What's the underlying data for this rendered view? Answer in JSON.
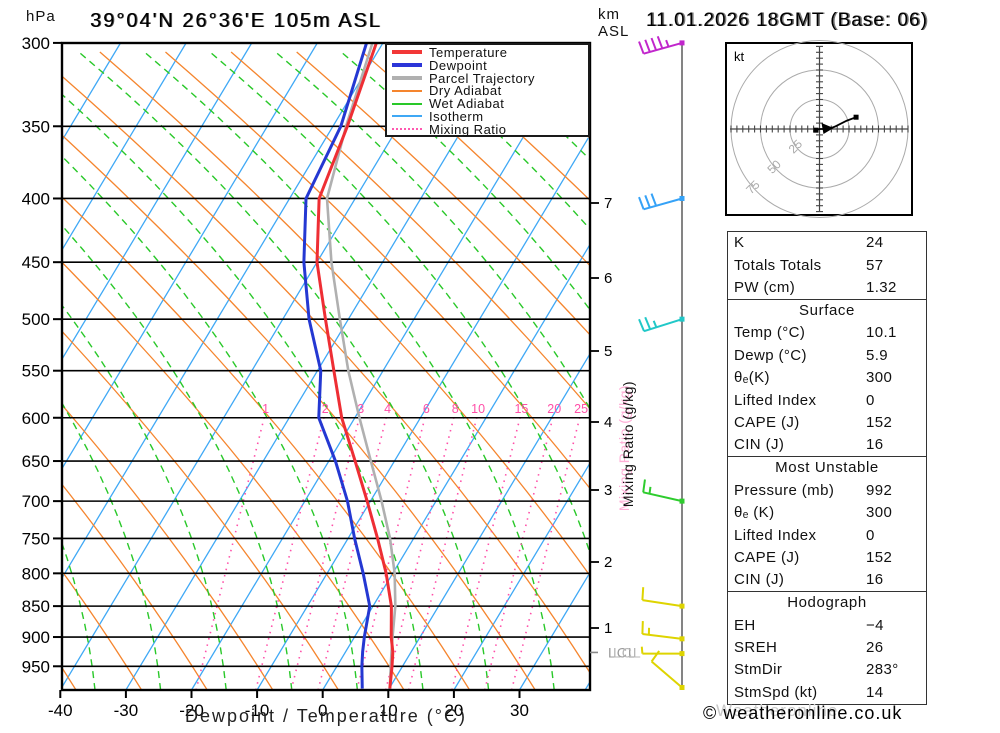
{
  "header": {
    "pressure_unit": "hPa",
    "title": "39°04'N 26°36'E 105m ASL",
    "datetime": "11.01.2026 18GMT (Base: 06)",
    "altitude_unit": "km\nASL"
  },
  "axes": {
    "x_label": "Dewpoint / Temperature (°C)",
    "x_ticks": [
      -40,
      -30,
      -20,
      -10,
      0,
      10,
      20,
      30
    ],
    "pressure_ticks": [
      300,
      350,
      400,
      450,
      500,
      550,
      600,
      650,
      700,
      750,
      800,
      850,
      900,
      950
    ],
    "km_ticks": [
      7,
      6,
      5,
      4,
      3,
      2,
      1
    ],
    "lcl_label": "LCL",
    "mixing_axis_label": "Mixing Ratio (g/kg)"
  },
  "legend": {
    "items": [
      {
        "label": "Temperature",
        "color": "#f23737",
        "style": "thick"
      },
      {
        "label": "Dewpoint",
        "color": "#2b35d8",
        "style": "thick"
      },
      {
        "label": "Parcel Trajectory",
        "color": "#b0b0b0",
        "style": "thick"
      },
      {
        "label": "Dry Adiabat",
        "color": "#f5852e",
        "style": "thin"
      },
      {
        "label": "Wet Adiabat",
        "color": "#29c829",
        "style": "thin"
      },
      {
        "label": "Isotherm",
        "color": "#3fa8f5",
        "style": "thin"
      },
      {
        "label": "Mixing Ratio",
        "color": "#ff58b0",
        "style": "dotted"
      }
    ]
  },
  "chart_data": {
    "type": "skewt-log-p sounding",
    "title": "39°04'N 26°36'E 105m ASL",
    "valid": "11.01.2026 18GMT (Base: 06)",
    "xlabel": "Dewpoint / Temperature (°C)",
    "xlim": [
      -40,
      40
    ],
    "pressure_lim_hpa": [
      300,
      993
    ],
    "colors": {
      "temperature": "#ee2e34",
      "dewpoint": "#2438d2",
      "parcel": "#b0b0b0",
      "dry_adiabat": "#f5852e",
      "wet_adiabat": "#29c829",
      "isotherm": "#3fa8f5",
      "mixing_ratio": "#ff4fa8"
    },
    "sounding": {
      "pressure_hpa": [
        990,
        950,
        925,
        900,
        850,
        800,
        750,
        700,
        650,
        600,
        550,
        500,
        450,
        400,
        350,
        300
      ],
      "temperature_c": [
        10.1,
        8.4,
        7.2,
        5.6,
        2.8,
        -1.0,
        -5.5,
        -10.5,
        -16.0,
        -22.0,
        -27.5,
        -33.5,
        -40.0,
        -45.5,
        -47.8,
        -51.0
      ],
      "dewpoint_c": [
        5.9,
        3.8,
        2.6,
        1.5,
        -0.5,
        -4.5,
        -9.0,
        -13.5,
        -19.0,
        -25.5,
        -29.5,
        -36.0,
        -42.0,
        -47.5,
        -48.8,
        -52.5
      ],
      "parcel_c": [
        10.1,
        8.2,
        7.0,
        5.8,
        3.4,
        0.3,
        -3.6,
        -8.3,
        -13.6,
        -19.3,
        -25.3,
        -31.3,
        -37.8,
        -44.3,
        -48.0,
        -51.6
      ]
    },
    "mixing_ratio_lines_g_kg": [
      1,
      2,
      3,
      4,
      6,
      8,
      10,
      15,
      20,
      25
    ],
    "lcl_pressure_hpa": 926,
    "wind_barbs": [
      {
        "pressure_hpa": 300,
        "speed_kt": 45,
        "color": "#c126cc",
        "dir": [
          -0.96,
          0.27
        ],
        "full": 4,
        "half": 1
      },
      {
        "pressure_hpa": 400,
        "speed_kt": 30,
        "color": "#35a2f7",
        "dir": [
          -0.96,
          0.27
        ],
        "full": 3,
        "half": 0
      },
      {
        "pressure_hpa": 500,
        "speed_kt": 25,
        "color": "#21c8c8",
        "dir": [
          -0.95,
          0.3
        ],
        "full": 2,
        "half": 1
      },
      {
        "pressure_hpa": 700,
        "speed_kt": 15,
        "color": "#2ecc2e",
        "dir": [
          -0.97,
          -0.22
        ],
        "full": 1,
        "half": 1
      },
      {
        "pressure_hpa": 850,
        "speed_kt": 10,
        "color": "#ded400",
        "dir": [
          -0.99,
          -0.15
        ],
        "full": 1,
        "half": 0
      },
      {
        "pressure_hpa": 903,
        "speed_kt": 15,
        "color": "#ded400",
        "dir": [
          -0.99,
          -0.12
        ],
        "full": 1,
        "half": 1
      },
      {
        "pressure_hpa": 928,
        "speed_kt": 5,
        "color": "#ded400",
        "dir": [
          -0.99,
          0.0
        ],
        "full": 0,
        "half": 1
      },
      {
        "pressure_hpa": 988,
        "speed_kt": 10,
        "color": "#ded400",
        "dir": [
          -0.76,
          -0.65
        ],
        "full": 1,
        "half": 0
      }
    ],
    "hodograph": {
      "unit_label": "kt",
      "ring_labels_kt": [
        25,
        50,
        75
      ],
      "trace_uv_kt": [
        [
          -3,
          -1
        ],
        [
          0,
          0
        ],
        [
          8,
          0
        ],
        [
          13,
          2
        ],
        [
          23,
          7
        ],
        [
          31,
          10
        ]
      ],
      "storm_motion": {
        "dir_deg": 283,
        "speed_kt": 14
      }
    },
    "indices": {
      "K": 24,
      "Totals_Totals": 57,
      "PW_cm": 1.32,
      "surface": {
        "temp_c": 10.1,
        "dewp_c": 5.9,
        "theta_e_k": 300,
        "lifted_index": 0,
        "cape_j": 152,
        "cin_j": 16
      },
      "most_unstable": {
        "pressure_mb": 992,
        "theta_e_k": 300,
        "lifted_index": 0,
        "cape_j": 152,
        "cin_j": 16
      },
      "hodograph": {
        "EH": -4,
        "SREH": 26,
        "StmDir_deg": 283,
        "StmSpd_kt": 14
      }
    }
  },
  "hodograph_panel": {
    "unit_label": "kt",
    "ring_labels": [
      "25",
      "50",
      "75"
    ]
  },
  "stats_tables": [
    {
      "header": null,
      "rows": [
        [
          "K",
          "24"
        ],
        [
          "Totals Totals",
          "57"
        ],
        [
          "PW (cm)",
          "1.32"
        ]
      ]
    },
    {
      "header": "Surface",
      "rows": [
        [
          "Temp (°C)",
          "10.1"
        ],
        [
          "Dewp (°C)",
          "5.9"
        ],
        [
          "θₑ(K)",
          "300"
        ],
        [
          "Lifted Index",
          "0"
        ],
        [
          "CAPE (J)",
          "152"
        ],
        [
          "CIN (J)",
          "16"
        ]
      ]
    },
    {
      "header": "Most Unstable",
      "rows": [
        [
          "Pressure (mb)",
          "992"
        ],
        [
          "θₑ (K)",
          "300"
        ],
        [
          "Lifted Index",
          "0"
        ],
        [
          "CAPE (J)",
          "152"
        ],
        [
          "CIN (J)",
          "16"
        ]
      ]
    },
    {
      "header": "Hodograph",
      "rows": [
        [
          "EH",
          "−4"
        ],
        [
          "SREH",
          "26"
        ],
        [
          "StmDir",
          "283°"
        ],
        [
          "StmSpd (kt)",
          "14"
        ]
      ]
    }
  ],
  "footer": {
    "text": "© weatheronline.co.uk",
    "ghost": "Weatheronline"
  }
}
